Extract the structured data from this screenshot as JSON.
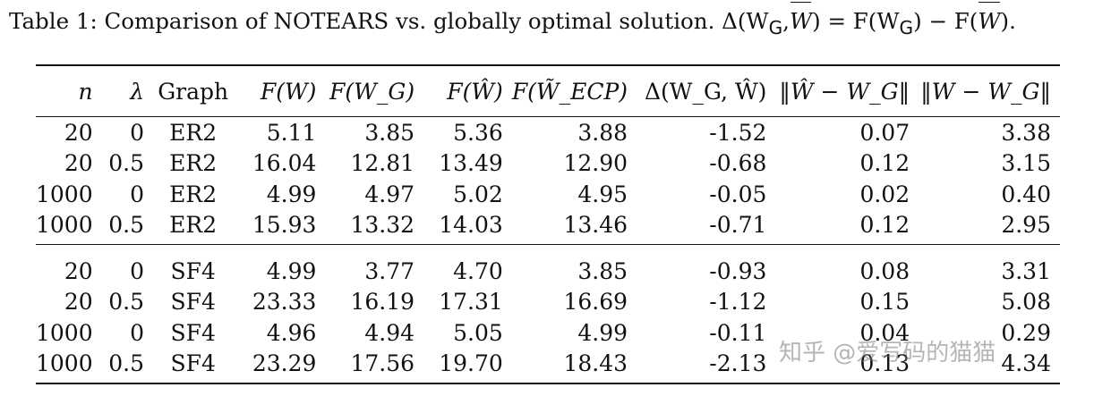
{
  "caption": {
    "lead": "Table 1:  Comparison of NOTEARS vs. globally optimal solution.  Δ(W",
    "sub1": "G",
    "mid1": ",",
    "w1": "W",
    "mid2": ") = F(W",
    "sub2": "G",
    "mid3": ") − F(",
    "w2": "W",
    "tail": ")."
  },
  "table": {
    "headers": [
      "n",
      "λ",
      "Graph",
      "F(W)",
      "F(W_G)",
      "F(Ŵ)",
      "F(W̃_ECP)",
      "Δ(W_G, Ŵ)",
      "‖Ŵ − W_G‖",
      "‖W − W_G‖"
    ],
    "groups": [
      [
        [
          "20",
          "0",
          "ER2",
          "5.11",
          "3.85",
          "5.36",
          "3.88",
          "-1.52",
          "0.07",
          "3.38"
        ],
        [
          "20",
          "0.5",
          "ER2",
          "16.04",
          "12.81",
          "13.49",
          "12.90",
          "-0.68",
          "0.12",
          "3.15"
        ],
        [
          "1000",
          "0",
          "ER2",
          "4.99",
          "4.97",
          "5.02",
          "4.95",
          "-0.05",
          "0.02",
          "0.40"
        ],
        [
          "1000",
          "0.5",
          "ER2",
          "15.93",
          "13.32",
          "14.03",
          "13.46",
          "-0.71",
          "0.12",
          "2.95"
        ]
      ],
      [
        [
          "20",
          "0",
          "SF4",
          "4.99",
          "3.77",
          "4.70",
          "3.85",
          "-0.93",
          "0.08",
          "3.31"
        ],
        [
          "20",
          "0.5",
          "SF4",
          "23.33",
          "16.19",
          "17.31",
          "16.69",
          "-1.12",
          "0.15",
          "5.08"
        ],
        [
          "1000",
          "0",
          "SF4",
          "4.96",
          "4.94",
          "5.05",
          "4.99",
          "-0.11",
          "0.04",
          "0.29"
        ],
        [
          "1000",
          "0.5",
          "SF4",
          "23.29",
          "17.56",
          "19.70",
          "18.43",
          "-2.13",
          "0.13",
          "4.34"
        ]
      ]
    ]
  },
  "watermark": "知乎 @爱写码的猫猫"
}
